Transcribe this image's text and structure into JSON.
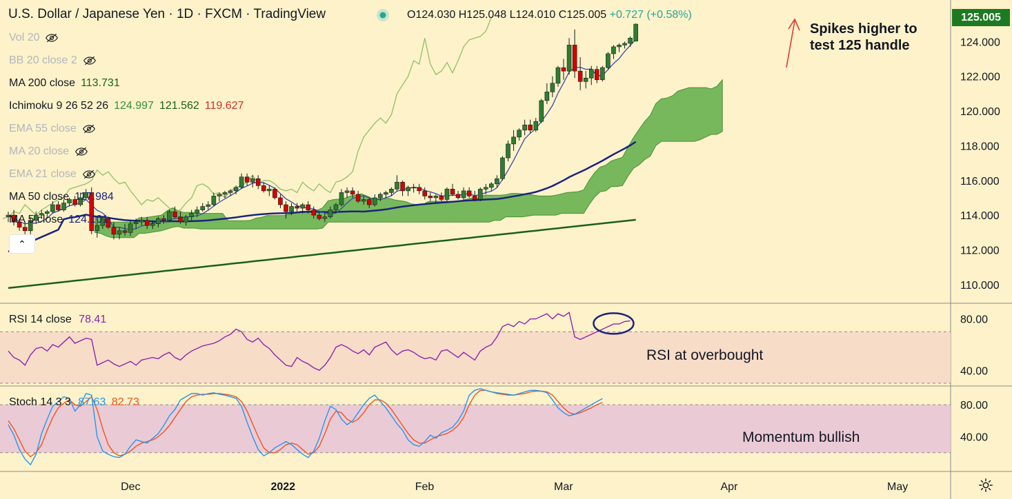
{
  "header": {
    "symbol": "U.S. Dollar / Japanese Yen · 1D · FXCM · TradingView",
    "open": "O124.030",
    "high": "H125.048",
    "low": "L124.010",
    "close": "C125.005",
    "change": "+0.727 (+0.58%)"
  },
  "indicators": [
    {
      "name": "Vol 20",
      "values": [],
      "hidden": true
    },
    {
      "name": "BB 20 close 2",
      "values": [],
      "hidden": true
    },
    {
      "name": "MA 200 close",
      "values": [
        "113.731"
      ],
      "colors": [
        "#1b5e20"
      ],
      "hidden": false
    },
    {
      "name": "Ichimoku 9 26 52 26",
      "values": [
        "124.997",
        "121.562",
        "119.627"
      ],
      "colors": [
        "#388e3c",
        "#1b5e20",
        "#d32f2f"
      ],
      "hidden": false
    },
    {
      "name": "EMA 55 close",
      "values": [],
      "hidden": true
    },
    {
      "name": "MA 20 close",
      "values": [],
      "hidden": true
    },
    {
      "name": "EMA 21 close",
      "values": [],
      "hidden": true
    },
    {
      "name": "MA 50 close",
      "values": [
        "117.984"
      ],
      "colors": [
        "#1a237e"
      ],
      "hidden": false
    },
    {
      "name": "MA 5 close",
      "values": [
        "124.101"
      ],
      "colors": [
        "#1a237e"
      ],
      "hidden": false
    }
  ],
  "last_price": "125.005",
  "annotations": {
    "price": "Spikes higher to\ntest 125 handle",
    "rsi": "RSI at overbought",
    "stoch": "Momentum bullish"
  },
  "rsi_legend": {
    "name": "RSI 14 close",
    "value": "78.41"
  },
  "stoch_legend": {
    "name": "Stoch 14 3 3",
    "k": "87.63",
    "d": "82.73"
  },
  "colors": {
    "background": "#fdf2c9",
    "up": "#2e7d32",
    "down": "#d50000",
    "cloud": "#5fae4a",
    "ma50": "#1a237e",
    "ma200": "#1b5e20",
    "rsi": "#8e24aa",
    "stoch_k": "#2196f3",
    "stoch_d": "#f4511e",
    "accent": "#1e7a22"
  },
  "chart_data": [
    {
      "type": "candlestick",
      "title": "U.S. Dollar / Japanese Yen · 1D · FXCM",
      "ylim": [
        109,
        126
      ],
      "y_ticks": [
        "124.000",
        "122.000",
        "120.000",
        "118.000",
        "116.000",
        "114.000",
        "112.000",
        "110.000"
      ],
      "x_ticks": [
        "Dec",
        "2022",
        "Feb",
        "Mar",
        "Apr",
        "May"
      ],
      "legend": "top-left",
      "grid": false,
      "candles": [
        [
          113.9,
          114.2,
          113.6,
          114.0
        ],
        [
          114.0,
          114.3,
          113.4,
          113.6
        ],
        [
          113.6,
          113.8,
          113.1,
          113.3
        ],
        [
          113.3,
          113.6,
          112.9,
          113.1
        ],
        [
          113.1,
          113.9,
          112.9,
          113.7
        ],
        [
          113.7,
          114.2,
          113.5,
          114.0
        ],
        [
          114.0,
          114.3,
          113.8,
          114.1
        ],
        [
          114.1,
          114.3,
          113.9,
          114.2
        ],
        [
          114.2,
          114.8,
          114.1,
          114.6
        ],
        [
          114.6,
          114.8,
          114.2,
          114.3
        ],
        [
          114.3,
          114.9,
          114.2,
          114.7
        ],
        [
          114.7,
          115.0,
          114.5,
          114.9
        ],
        [
          114.9,
          115.1,
          114.5,
          114.6
        ],
        [
          114.6,
          115.3,
          114.5,
          115.0
        ],
        [
          115.0,
          115.5,
          114.9,
          115.3
        ],
        [
          115.3,
          115.6,
          112.9,
          113.1
        ],
        [
          113.1,
          113.6,
          112.7,
          113.4
        ],
        [
          113.4,
          113.9,
          113.2,
          113.8
        ],
        [
          113.8,
          113.9,
          113.2,
          113.3
        ],
        [
          113.3,
          113.6,
          112.6,
          112.9
        ],
        [
          112.9,
          113.3,
          112.6,
          113.1
        ],
        [
          113.1,
          113.5,
          112.8,
          113.0
        ],
        [
          113.0,
          113.7,
          112.8,
          113.5
        ],
        [
          113.5,
          113.8,
          113.2,
          113.6
        ],
        [
          113.6,
          113.9,
          113.4,
          113.7
        ],
        [
          113.7,
          113.9,
          113.2,
          113.4
        ],
        [
          113.4,
          113.7,
          113.2,
          113.5
        ],
        [
          113.5,
          113.9,
          113.3,
          113.8
        ],
        [
          113.8,
          114.0,
          113.5,
          113.7
        ],
        [
          113.7,
          114.3,
          113.6,
          114.2
        ],
        [
          114.2,
          114.5,
          113.8,
          113.9
        ],
        [
          113.9,
          114.2,
          113.5,
          113.6
        ],
        [
          113.6,
          114.0,
          113.4,
          113.9
        ],
        [
          113.9,
          114.3,
          113.7,
          114.1
        ],
        [
          114.1,
          114.5,
          113.9,
          114.3
        ],
        [
          114.3,
          114.7,
          114.2,
          114.5
        ],
        [
          114.5,
          114.8,
          114.3,
          114.6
        ],
        [
          114.6,
          115.3,
          114.5,
          115.1
        ],
        [
          115.1,
          115.3,
          114.8,
          115.2
        ],
        [
          115.2,
          115.4,
          115.0,
          115.3
        ],
        [
          115.3,
          115.5,
          115.1,
          115.4
        ],
        [
          115.4,
          115.7,
          115.2,
          115.6
        ],
        [
          115.6,
          116.4,
          115.5,
          116.2
        ],
        [
          116.2,
          116.4,
          115.7,
          115.9
        ],
        [
          115.9,
          116.3,
          115.6,
          116.1
        ],
        [
          116.1,
          116.3,
          115.5,
          115.7
        ],
        [
          115.7,
          115.9,
          115.3,
          115.4
        ],
        [
          115.4,
          115.7,
          115.1,
          115.5
        ],
        [
          115.5,
          115.6,
          114.9,
          115.0
        ],
        [
          115.0,
          115.2,
          114.4,
          114.6
        ],
        [
          114.6,
          114.8,
          113.8,
          114.2
        ],
        [
          114.2,
          114.7,
          114.0,
          114.5
        ],
        [
          114.5,
          114.7,
          114.2,
          114.4
        ],
        [
          114.4,
          114.7,
          114.1,
          114.6
        ],
        [
          114.6,
          114.8,
          114.1,
          114.3
        ],
        [
          114.3,
          114.5,
          113.8,
          114.0
        ],
        [
          114.0,
          114.2,
          113.7,
          113.8
        ],
        [
          113.8,
          114.1,
          113.6,
          113.9
        ],
        [
          113.9,
          114.5,
          113.8,
          114.3
        ],
        [
          114.3,
          114.7,
          114.1,
          114.6
        ],
        [
          114.6,
          115.5,
          114.5,
          115.3
        ],
        [
          115.3,
          115.6,
          115.0,
          115.4
        ],
        [
          115.4,
          115.6,
          115.0,
          115.2
        ],
        [
          115.2,
          115.4,
          114.7,
          114.8
        ],
        [
          114.8,
          115.1,
          114.6,
          114.9
        ],
        [
          114.9,
          115.0,
          114.4,
          114.6
        ],
        [
          114.6,
          115.2,
          114.5,
          115.0
        ],
        [
          115.0,
          115.3,
          114.8,
          115.2
        ],
        [
          115.2,
          115.4,
          115.0,
          115.3
        ],
        [
          115.3,
          115.6,
          115.1,
          115.5
        ],
        [
          115.5,
          116.3,
          115.4,
          115.9
        ],
        [
          115.9,
          116.0,
          115.1,
          115.4
        ],
        [
          115.4,
          115.7,
          115.1,
          115.6
        ],
        [
          115.6,
          115.8,
          115.3,
          115.6
        ],
        [
          115.6,
          115.8,
          115.2,
          115.4
        ],
        [
          115.4,
          115.6,
          114.9,
          115.1
        ],
        [
          115.1,
          115.3,
          114.8,
          115.0
        ],
        [
          115.0,
          115.2,
          114.7,
          115.1
        ],
        [
          115.1,
          115.3,
          114.8,
          114.9
        ],
        [
          114.9,
          115.6,
          114.8,
          115.5
        ],
        [
          115.5,
          115.8,
          115.1,
          115.2
        ],
        [
          115.2,
          115.4,
          114.9,
          115.0
        ],
        [
          115.0,
          115.6,
          114.9,
          115.4
        ],
        [
          115.4,
          115.6,
          115.0,
          115.1
        ],
        [
          115.1,
          115.4,
          114.8,
          114.9
        ],
        [
          114.9,
          115.6,
          114.8,
          115.5
        ],
        [
          115.5,
          115.8,
          115.2,
          115.6
        ],
        [
          115.6,
          115.9,
          115.4,
          115.8
        ],
        [
          115.8,
          116.3,
          115.6,
          116.1
        ],
        [
          116.1,
          117.4,
          116.0,
          117.3
        ],
        [
          117.3,
          118.3,
          117.1,
          118.1
        ],
        [
          118.1,
          118.9,
          117.7,
          118.5
        ],
        [
          118.5,
          119.0,
          118.3,
          118.9
        ],
        [
          118.9,
          119.5,
          118.6,
          119.2
        ],
        [
          119.2,
          119.5,
          118.7,
          118.9
        ],
        [
          118.9,
          119.6,
          118.8,
          119.4
        ],
        [
          119.4,
          120.7,
          119.3,
          120.6
        ],
        [
          120.6,
          121.6,
          120.4,
          121.1
        ],
        [
          121.1,
          122.0,
          120.8,
          121.6
        ],
        [
          121.6,
          122.6,
          121.4,
          122.5
        ],
        [
          122.5,
          123.0,
          121.8,
          122.3
        ],
        [
          122.3,
          124.2,
          122.1,
          123.8
        ],
        [
          123.8,
          124.7,
          121.9,
          122.3
        ],
        [
          122.3,
          123.1,
          121.2,
          121.7
        ],
        [
          121.7,
          122.3,
          121.3,
          121.9
        ],
        [
          121.9,
          122.6,
          121.5,
          122.4
        ],
        [
          122.4,
          122.6,
          121.6,
          121.8
        ],
        [
          121.8,
          122.6,
          121.7,
          122.5
        ],
        [
          122.5,
          123.4,
          122.4,
          123.3
        ],
        [
          123.3,
          123.8,
          123.0,
          123.7
        ],
        [
          123.7,
          123.9,
          123.4,
          123.8
        ],
        [
          123.8,
          124.0,
          123.6,
          123.9
        ],
        [
          123.9,
          124.3,
          123.7,
          124.2
        ],
        [
          124.03,
          125.048,
          124.01,
          125.005
        ]
      ]
    },
    {
      "type": "line",
      "title": "RSI 14 close",
      "ylim": [
        30,
        90
      ],
      "y_ticks": [
        "80.00",
        "40.00"
      ],
      "overbought": 70,
      "oversold": 30,
      "series": [
        {
          "name": "RSI 14 close",
          "values": [
            55,
            50,
            48,
            44,
            52,
            57,
            58,
            55,
            60,
            58,
            62,
            66,
            61,
            63,
            65,
            64,
            44,
            46,
            48,
            45,
            43,
            45,
            47,
            44,
            48,
            49,
            50,
            49,
            52,
            54,
            50,
            48,
            52,
            55,
            57,
            59,
            60,
            61,
            63,
            66,
            68,
            72,
            70,
            64,
            62,
            65,
            60,
            57,
            52,
            48,
            44,
            43,
            50,
            47,
            45,
            42,
            40,
            44,
            50,
            58,
            60,
            58,
            55,
            53,
            56,
            52,
            58,
            60,
            62,
            56,
            52,
            55,
            56,
            54,
            51,
            49,
            50,
            48,
            55,
            56,
            53,
            50,
            54,
            51,
            48,
            55,
            58,
            60,
            66,
            74,
            76,
            74,
            78,
            76,
            80,
            80,
            82,
            84,
            80,
            84,
            82,
            85,
            66,
            64,
            66,
            68,
            70,
            72,
            74,
            76,
            76,
            78,
            78.41
          ]
        }
      ]
    },
    {
      "type": "line",
      "title": "Stoch 14 3 3",
      "ylim": [
        0,
        100
      ],
      "y_ticks": [
        "80.00",
        "40.00"
      ],
      "overbought": 80,
      "oversold": 20,
      "series": [
        {
          "name": "%K",
          "values": [
            55,
            42,
            24,
            12,
            5,
            18,
            44,
            62,
            78,
            84,
            90,
            88,
            72,
            80,
            94,
            92,
            40,
            22,
            18,
            15,
            14,
            18,
            28,
            36,
            34,
            32,
            38,
            44,
            54,
            66,
            74,
            86,
            90,
            94,
            94,
            92,
            94,
            95,
            93,
            92,
            90,
            88,
            78,
            58,
            40,
            24,
            16,
            20,
            26,
            30,
            34,
            30,
            24,
            18,
            14,
            22,
            38,
            60,
            78,
            74,
            62,
            55,
            60,
            70,
            80,
            88,
            92,
            84,
            76,
            66,
            56,
            48,
            36,
            30,
            28,
            34,
            42,
            38,
            45,
            48,
            52,
            60,
            72,
            92,
            98,
            100,
            98,
            96,
            95,
            94,
            93,
            92,
            94,
            96,
            98,
            98,
            97,
            95,
            86,
            76,
            70,
            66,
            68,
            72,
            76,
            80,
            84,
            87.63
          ]
        },
        {
          "name": "%D",
          "values": [
            60,
            50,
            36,
            22,
            15,
            20,
            30,
            48,
            64,
            76,
            82,
            86,
            80,
            78,
            84,
            90,
            74,
            50,
            30,
            20,
            16,
            18,
            22,
            28,
            32,
            34,
            36,
            40,
            46,
            54,
            64,
            74,
            84,
            90,
            92,
            93,
            93,
            94,
            94,
            93,
            92,
            90,
            84,
            72,
            56,
            40,
            26,
            20,
            20,
            24,
            30,
            32,
            30,
            24,
            18,
            20,
            28,
            44,
            62,
            72,
            70,
            62,
            58,
            62,
            70,
            80,
            86,
            86,
            82,
            74,
            64,
            54,
            44,
            36,
            32,
            32,
            36,
            40,
            42,
            44,
            48,
            54,
            64,
            80,
            92,
            98,
            98,
            96,
            94,
            93,
            92,
            92,
            93,
            94,
            96,
            97,
            97,
            96,
            92,
            84,
            76,
            70,
            68,
            70,
            73,
            76,
            80,
            82.73
          ]
        }
      ]
    }
  ]
}
